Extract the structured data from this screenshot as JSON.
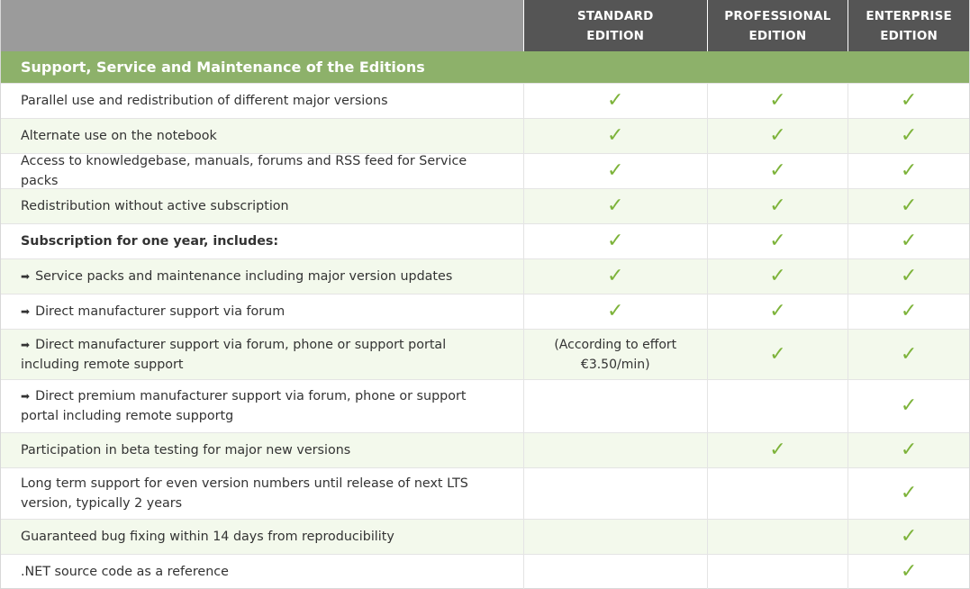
{
  "header": {
    "columns": [
      {
        "line1": "STANDARD",
        "line2": "EDITION"
      },
      {
        "line1": "PROFESSIONAL",
        "line2": "EDITION"
      },
      {
        "line1": "ENTERPRISE",
        "line2": "EDITION"
      }
    ]
  },
  "section_title": "Support, Service and Maintenance of the Editions",
  "check_glyph": "✓",
  "arrow_glyph": "➡",
  "colors": {
    "header_bg": "#555555",
    "section_green": "#8db16a",
    "check_green": "#7db33a",
    "alt_row_bg": "#f3f9ec"
  },
  "rows": [
    {
      "label": "Parallel use and redistribution of different major versions",
      "values": [
        "check",
        "check",
        "check"
      ]
    },
    {
      "label": "Alternate use on the notebook",
      "values": [
        "check",
        "check",
        "check"
      ]
    },
    {
      "label": "Access to knowledgebase, manuals, forums and RSS feed for Service packs",
      "values": [
        "check",
        "check",
        "check"
      ]
    },
    {
      "label": "Redistribution without active subscription",
      "values": [
        "check",
        "check",
        "check"
      ]
    },
    {
      "label": "Subscription for one year, includes:",
      "values": [
        "check",
        "check",
        "check"
      ]
    },
    {
      "label": "Service packs and maintenance including major version updates",
      "values": [
        "check",
        "check",
        "check"
      ]
    },
    {
      "label": "Direct manufacturer support via forum",
      "values": [
        "check",
        "check",
        "check"
      ]
    },
    {
      "label": "Direct manufacturer support via forum, phone or support portal including remote support",
      "values": [
        "(According to effort €3.50/min)",
        "check",
        "check"
      ]
    },
    {
      "label": "Direct premium manufacturer support via forum, phone or support portal including remote supportg",
      "values": [
        "",
        "",
        "check"
      ]
    },
    {
      "label": "Participation in beta testing for major new versions",
      "values": [
        "",
        "check",
        "check"
      ]
    },
    {
      "label": "Long term support for even version numbers until release of next LTS version, typically 2 years",
      "values": [
        "",
        "",
        "check"
      ]
    },
    {
      "label": "Guaranteed bug fixing within 14 days from reproducibility",
      "values": [
        "",
        "",
        "check"
      ]
    },
    {
      "label": ".NET source code as a reference",
      "values": [
        "",
        "",
        "check"
      ]
    }
  ]
}
